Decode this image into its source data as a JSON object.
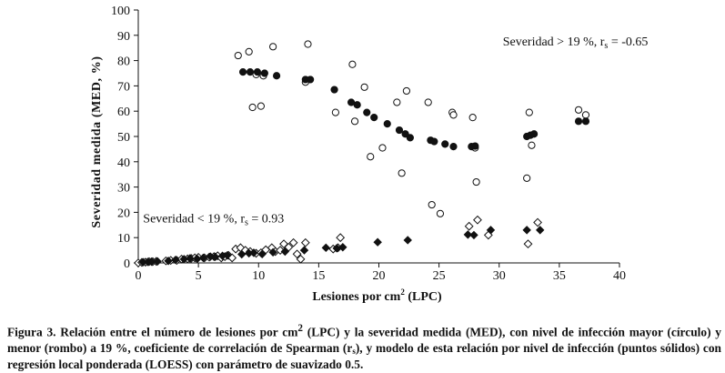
{
  "chart_data": {
    "type": "scatter",
    "title": "",
    "xlabel": "Lesiones por cm",
    "xlabel_sup": "2",
    "xlabel_suffix": " (LPC)",
    "ylabel": "Severidad medida (MED, %)",
    "xlim": [
      0,
      40
    ],
    "ylim": [
      0,
      100
    ],
    "xticks": [
      0,
      5,
      10,
      15,
      20,
      25,
      30,
      35,
      40
    ],
    "yticks": [
      0,
      10,
      20,
      30,
      40,
      50,
      60,
      70,
      80,
      90,
      100
    ],
    "grid": false,
    "annotations": [
      {
        "text": "Severidad > 19 %, r",
        "sub": "s",
        "suffix": " = -0.65",
        "at": [
          30.3,
          86
        ]
      },
      {
        "text": "Severidad < 19 %, r",
        "sub": "s",
        "suffix": " = 0.93",
        "at": [
          0.4,
          16
        ]
      }
    ],
    "series": [
      {
        "marker": "circle-open",
        "points": [
          [
            8.3,
            82
          ],
          [
            9.2,
            83.5
          ],
          [
            9.5,
            61.5
          ],
          [
            9.8,
            74.5
          ],
          [
            10.2,
            62
          ],
          [
            10.4,
            74
          ],
          [
            11.2,
            85.5
          ],
          [
            13.9,
            71.5
          ],
          [
            14.1,
            86.5
          ],
          [
            16.4,
            59.5
          ],
          [
            17.8,
            78.5
          ],
          [
            18,
            56
          ],
          [
            18.8,
            69.5
          ],
          [
            19.3,
            42
          ],
          [
            20.3,
            45.5
          ],
          [
            21.5,
            63.5
          ],
          [
            21.9,
            35.5
          ],
          [
            22.3,
            68
          ],
          [
            24.1,
            63.5
          ],
          [
            24.4,
            23
          ],
          [
            25.1,
            19.5
          ],
          [
            26.1,
            59.5
          ],
          [
            26.2,
            58.5
          ],
          [
            27.8,
            57.5
          ],
          [
            28,
            45.5
          ],
          [
            28.1,
            32
          ],
          [
            32.3,
            33.5
          ],
          [
            32.5,
            59.5
          ],
          [
            32.7,
            46.5
          ],
          [
            36.6,
            60.5
          ],
          [
            37.2,
            58.5
          ]
        ]
      },
      {
        "marker": "circle-filled",
        "points": [
          [
            8.7,
            75.5
          ],
          [
            9.3,
            75.5
          ],
          [
            9.9,
            75.5
          ],
          [
            10.5,
            75
          ],
          [
            11.5,
            74
          ],
          [
            13.9,
            72.5
          ],
          [
            14.3,
            72.5
          ],
          [
            16.3,
            68.5
          ],
          [
            17.7,
            63.5
          ],
          [
            18.2,
            62.5
          ],
          [
            19,
            59.5
          ],
          [
            19.6,
            57.5
          ],
          [
            20.7,
            55
          ],
          [
            21.7,
            52.5
          ],
          [
            22.2,
            51
          ],
          [
            22.6,
            49.5
          ],
          [
            24.3,
            48.5
          ],
          [
            24.6,
            48
          ],
          [
            25.5,
            47
          ],
          [
            26.2,
            46
          ],
          [
            27.7,
            46
          ],
          [
            28,
            46.2
          ],
          [
            32.3,
            50
          ],
          [
            32.6,
            50.5
          ],
          [
            32.9,
            51
          ],
          [
            36.6,
            56
          ],
          [
            37.2,
            56
          ]
        ]
      },
      {
        "marker": "diamond-open",
        "points": [
          [
            0,
            0
          ],
          [
            0.3,
            0.2
          ],
          [
            0.6,
            0.3
          ],
          [
            0.9,
            0.5
          ],
          [
            1.2,
            0.5
          ],
          [
            1.5,
            0.6
          ],
          [
            2.3,
            0.8
          ],
          [
            2.7,
            1
          ],
          [
            3.2,
            1
          ],
          [
            3.6,
            1.5
          ],
          [
            4.1,
            1.6
          ],
          [
            4.4,
            1.8
          ],
          [
            4.7,
            2
          ],
          [
            5,
            2.2
          ],
          [
            5.5,
            2
          ],
          [
            5.9,
            2.3
          ],
          [
            6.3,
            2.5
          ],
          [
            6.6,
            2.8
          ],
          [
            6.9,
            2
          ],
          [
            7.2,
            2.5
          ],
          [
            7.5,
            3
          ],
          [
            7.8,
            2
          ],
          [
            8.1,
            5.5
          ],
          [
            8.5,
            6
          ],
          [
            8.9,
            5
          ],
          [
            9.3,
            4.5
          ],
          [
            9.8,
            3.8
          ],
          [
            10.2,
            4
          ],
          [
            10.6,
            5.2
          ],
          [
            11.1,
            6
          ],
          [
            11.4,
            4.5
          ],
          [
            11.8,
            5
          ],
          [
            12.1,
            7.5
          ],
          [
            12.5,
            6.2
          ],
          [
            12.9,
            8
          ],
          [
            13.2,
            3.5
          ],
          [
            13.5,
            1.5
          ],
          [
            13.9,
            8
          ],
          [
            16.2,
            5.5
          ],
          [
            16.6,
            6
          ],
          [
            16.8,
            10
          ],
          [
            27.5,
            14.5
          ],
          [
            28.2,
            17
          ],
          [
            29.1,
            11
          ],
          [
            32.4,
            7.5
          ],
          [
            33.2,
            16
          ]
        ]
      },
      {
        "marker": "diamond-filled",
        "points": [
          [
            0.4,
            0.3
          ],
          [
            0.8,
            0.4
          ],
          [
            1.1,
            0.5
          ],
          [
            1.6,
            0.6
          ],
          [
            2.5,
            0.8
          ],
          [
            3.1,
            1.2
          ],
          [
            3.8,
            1.5
          ],
          [
            4.3,
            1.8
          ],
          [
            4.9,
            1.6
          ],
          [
            5.4,
            2
          ],
          [
            6,
            2.5
          ],
          [
            6.4,
            2.4
          ],
          [
            7,
            2.8
          ],
          [
            7.4,
            3
          ],
          [
            8.6,
            3.4
          ],
          [
            9.2,
            3.8
          ],
          [
            9.6,
            4
          ],
          [
            10.3,
            3.5
          ],
          [
            11.2,
            4.2
          ],
          [
            12.2,
            4.5
          ],
          [
            13.8,
            5
          ],
          [
            15.6,
            6
          ],
          [
            16.5,
            5.8
          ],
          [
            17,
            6.2
          ],
          [
            19.9,
            8.2
          ],
          [
            22.4,
            9
          ],
          [
            27.4,
            11.2
          ],
          [
            27.9,
            11
          ],
          [
            29.3,
            13
          ],
          [
            32.3,
            13
          ],
          [
            33.4,
            13
          ]
        ]
      }
    ]
  },
  "caption": {
    "prefix": "Figura 3. Relación entre el número de lesiones por cm",
    "sup": "2",
    "part2": " (LPC) y la severidad medida (MED), con nivel de infección mayor (círculo) y menor (rombo) a 19 %, coeficiente de correlación de Spearman (r",
    "sub": "s",
    "part3": "), y modelo de esta relación por nivel de infección (puntos sólidos) con regresión local ponderada (LOESS) con parámetro de suavizado 0.5."
  }
}
